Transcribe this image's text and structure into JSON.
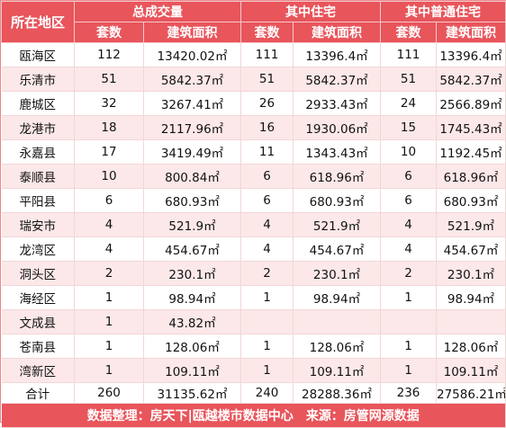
{
  "header": {
    "region": "所在地区",
    "groups": [
      "总成交量",
      "其中住宅",
      "其中普通住宅"
    ],
    "sub": {
      "count": "套数",
      "area": "建筑面积"
    }
  },
  "rows": [
    {
      "region": "瓯海区",
      "total_count": "112",
      "total_area": "13420.02㎡",
      "res_count": "111",
      "res_area": "13396.4㎡",
      "normal_count": "111",
      "normal_area": "13396.4㎡"
    },
    {
      "region": "乐清市",
      "total_count": "51",
      "total_area": "5842.37㎡",
      "res_count": "51",
      "res_area": "5842.37㎡",
      "normal_count": "51",
      "normal_area": "5842.37㎡"
    },
    {
      "region": "鹿城区",
      "total_count": "32",
      "total_area": "3267.41㎡",
      "res_count": "26",
      "res_area": "2933.43㎡",
      "normal_count": "24",
      "normal_area": "2566.89㎡"
    },
    {
      "region": "龙港市",
      "total_count": "18",
      "total_area": "2117.96㎡",
      "res_count": "16",
      "res_area": "1930.06㎡",
      "normal_count": "15",
      "normal_area": "1745.43㎡"
    },
    {
      "region": "永嘉县",
      "total_count": "17",
      "total_area": "3419.49㎡",
      "res_count": "11",
      "res_area": "1343.43㎡",
      "normal_count": "10",
      "normal_area": "1192.45㎡"
    },
    {
      "region": "泰顺县",
      "total_count": "10",
      "total_area": "800.84㎡",
      "res_count": "6",
      "res_area": "618.96㎡",
      "normal_count": "6",
      "normal_area": "618.96㎡"
    },
    {
      "region": "平阳县",
      "total_count": "6",
      "total_area": "680.93㎡",
      "res_count": "6",
      "res_area": "680.93㎡",
      "normal_count": "6",
      "normal_area": "680.93㎡"
    },
    {
      "region": "瑞安市",
      "total_count": "4",
      "total_area": "521.9㎡",
      "res_count": "4",
      "res_area": "521.9㎡",
      "normal_count": "4",
      "normal_area": "521.9㎡"
    },
    {
      "region": "龙湾区",
      "total_count": "4",
      "total_area": "454.67㎡",
      "res_count": "4",
      "res_area": "454.67㎡",
      "normal_count": "4",
      "normal_area": "454.67㎡"
    },
    {
      "region": "洞头区",
      "total_count": "2",
      "total_area": "230.1㎡",
      "res_count": "2",
      "res_area": "230.1㎡",
      "normal_count": "2",
      "normal_area": "230.1㎡"
    },
    {
      "region": "海经区",
      "total_count": "1",
      "total_area": "98.94㎡",
      "res_count": "1",
      "res_area": "98.94㎡",
      "normal_count": "1",
      "normal_area": "98.94㎡"
    },
    {
      "region": "文成县",
      "total_count": "1",
      "total_area": "43.82㎡",
      "res_count": "",
      "res_area": "",
      "normal_count": "",
      "normal_area": ""
    },
    {
      "region": "苍南县",
      "total_count": "1",
      "total_area": "128.06㎡",
      "res_count": "1",
      "res_area": "128.06㎡",
      "normal_count": "1",
      "normal_area": "128.06㎡"
    },
    {
      "region": "湾新区",
      "total_count": "1",
      "total_area": "109.11㎡",
      "res_count": "1",
      "res_area": "109.11㎡",
      "normal_count": "1",
      "normal_area": "109.11㎡"
    }
  ],
  "total": {
    "region": "合计",
    "total_count": "260",
    "total_area": "31135.62㎡",
    "res_count": "240",
    "res_area": "28288.36㎡",
    "normal_count": "236",
    "normal_area": "27586.21㎡"
  },
  "footer": {
    "left": "数据整理：房天下|瓯越楼市数据中心",
    "right": "来源：房管网源数据"
  }
}
